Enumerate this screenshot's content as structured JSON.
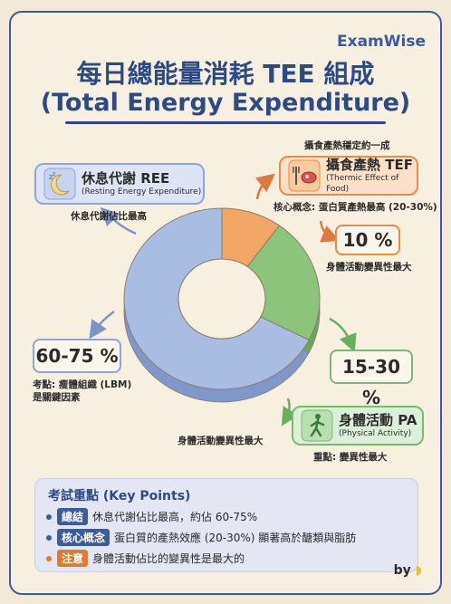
{
  "brand": "ExamWise",
  "title": {
    "line1": "每日總能量消耗 TEE 組成",
    "line2": "(Total Energy Expenditure)"
  },
  "ree": {
    "label": "休息代謝 REE",
    "english": "(Resting Energy Expenditure)",
    "note": "休息代謝佔比最高",
    "percent": "60-75 %",
    "exam_note_1": "考點: 瘦體組織 (LBM)",
    "exam_note_2": "是關鍵因素",
    "color": "#a9bde3",
    "icon": "sleeping-moon-icon"
  },
  "tef": {
    "top_note": "攝食產熱穩定約一成",
    "label": "攝食產熱 TEF",
    "english": "(Thermic Effect of Food)",
    "core_note": "核心概念: 蛋白質產熱最高 (20-30%)",
    "percent": "10 %",
    "below_note": "身體活動變異性最大",
    "color": "#f2a766",
    "icon": "food-icon"
  },
  "pa": {
    "label": "身體活動 PA",
    "english": "(Physical Activity)",
    "left_note": "身體活動變異性最大",
    "key_note": "重點: 變異性最大",
    "percent": "15-30 %",
    "color": "#8cc47c",
    "icon": "walking-person-icon"
  },
  "chart_data": {
    "type": "pie",
    "labels": [
      "REE",
      "TEF",
      "PA"
    ],
    "values": [
      67.5,
      10,
      22.5
    ]
  },
  "key_points": {
    "heading": "考試重點 (Key Points)",
    "items": [
      {
        "tag": "總結",
        "text": "休息代謝佔比最高，約佔 60-75%",
        "color": "#3d5a9b"
      },
      {
        "tag": "核心概念",
        "text": "蛋白質的產熱效應 (20-30%) 顯著高於醣類與脂肪",
        "color": "#3d5a9b"
      },
      {
        "tag": "注意",
        "text": "身體活動佔比的變異性是最大的",
        "color": "#e07a2e"
      }
    ]
  },
  "byline": "by"
}
